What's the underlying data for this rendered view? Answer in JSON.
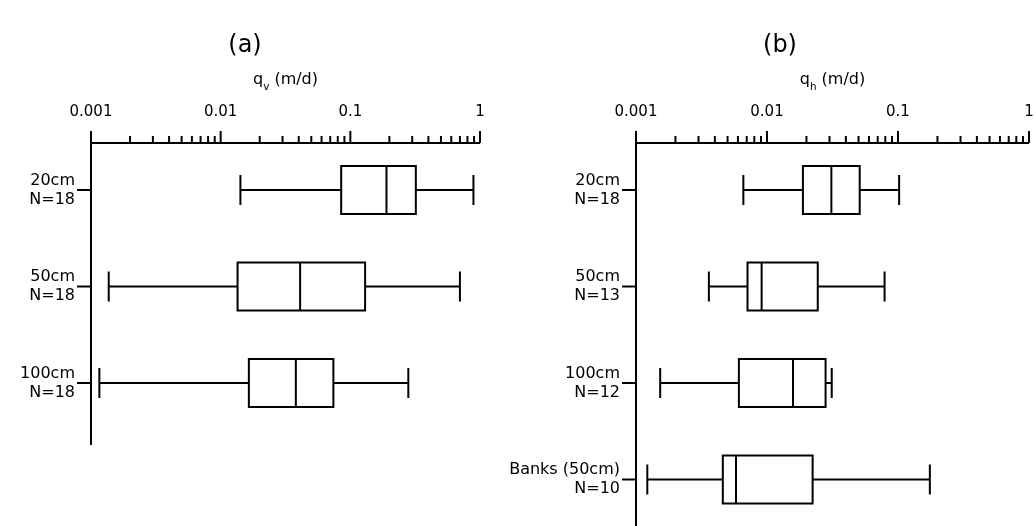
{
  "chart_data": [
    {
      "type": "box",
      "orientation": "horizontal",
      "title": "(a)",
      "xlabel": "q$_{v}$ (m/d)",
      "log": "x",
      "categories": [
        "20cm\nN=18",
        "50cm\nN=18",
        "100cm\nN=18"
      ],
      "boxes": [
        {
          "low": 0.0142,
          "q1": 0.085,
          "median": 0.19,
          "q3": 0.32,
          "high": 0.89
        },
        {
          "low": 0.00137,
          "q1": 0.0135,
          "median": 0.041,
          "q3": 0.13,
          "high": 0.7
        },
        {
          "low": 0.00116,
          "q1": 0.0165,
          "median": 0.038,
          "q3": 0.074,
          "high": 0.28
        }
      ],
      "xlim": [
        0.001,
        1
      ],
      "xticks": [
        0.001,
        {
          "value": 0.002,
          "label": null
        },
        {
          "value": 0.003,
          "label": null
        },
        {
          "value": 0.004,
          "label": null
        },
        {
          "value": 0.005,
          "label": null
        },
        {
          "value": 0.006,
          "label": null
        },
        {
          "value": 0.007,
          "label": null
        },
        {
          "value": 0.008,
          "label": null
        },
        {
          "value": 0.009,
          "label": null
        },
        0.01,
        {
          "value": 0.02,
          "label": null
        },
        {
          "value": 0.03,
          "label": null
        },
        {
          "value": 0.04,
          "label": null
        },
        {
          "value": 0.05,
          "label": null
        },
        {
          "value": 0.06,
          "label": null
        },
        {
          "value": 0.07,
          "label": null
        },
        {
          "value": 0.08,
          "label": null
        },
        {
          "value": 0.09,
          "label": null
        },
        0.1,
        {
          "value": 0.2,
          "label": null
        },
        {
          "value": 0.3,
          "label": null
        },
        {
          "value": 0.4,
          "label": null
        },
        {
          "value": 0.5,
          "label": null
        },
        {
          "value": 0.6,
          "label": null
        },
        {
          "value": 0.7,
          "label": null
        },
        {
          "value": 0.8,
          "label": null
        },
        {
          "value": 0.9,
          "label": null
        },
        1
      ],
      "grid": false
    },
    {
      "type": "box",
      "orientation": "horizontal",
      "title": "(b)",
      "xlabel": "q$_{h}$ (m/d)",
      "log": "x",
      "categories": [
        "20cm\nN=18",
        "50cm\nN=13",
        "100cm\nN=12",
        "Banks (50cm)\nN=10"
      ],
      "boxes": [
        {
          "low": 0.0066,
          "q1": 0.0188,
          "median": 0.031,
          "q3": 0.051,
          "high": 0.102
        },
        {
          "low": 0.0036,
          "q1": 0.0071,
          "median": 0.0091,
          "q3": 0.0244,
          "high": 0.079
        },
        {
          "low": 0.00153,
          "q1": 0.0061,
          "median": 0.0158,
          "q3": 0.028,
          "high": 0.0312
        },
        {
          "low": 0.00122,
          "q1": 0.0046,
          "median": 0.0058,
          "q3": 0.0223,
          "high": 0.175
        }
      ],
      "xlim": [
        0.001,
        1
      ],
      "xticks": [
        0.001,
        {
          "value": 0.002,
          "label": null
        },
        {
          "value": 0.003,
          "label": null
        },
        {
          "value": 0.004,
          "label": null
        },
        {
          "value": 0.005,
          "label": null
        },
        {
          "value": 0.006,
          "label": null
        },
        {
          "value": 0.007,
          "label": null
        },
        {
          "value": 0.008,
          "label": null
        },
        {
          "value": 0.009,
          "label": null
        },
        0.01,
        {
          "value": 0.02,
          "label": null
        },
        {
          "value": 0.03,
          "label": null
        },
        {
          "value": 0.04,
          "label": null
        },
        {
          "value": 0.05,
          "label": null
        },
        {
          "value": 0.06,
          "label": null
        },
        {
          "value": 0.07,
          "label": null
        },
        {
          "value": 0.08,
          "label": null
        },
        {
          "value": 0.09,
          "label": null
        },
        0.1,
        {
          "value": 0.2,
          "label": null
        },
        {
          "value": 0.3,
          "label": null
        },
        {
          "value": 0.4,
          "label": null
        },
        {
          "value": 0.5,
          "label": null
        },
        {
          "value": 0.6,
          "label": null
        },
        {
          "value": 0.7,
          "label": null
        },
        {
          "value": 0.8,
          "label": null
        },
        {
          "value": 0.9,
          "label": null
        },
        1
      ],
      "grid": false
    }
  ]
}
